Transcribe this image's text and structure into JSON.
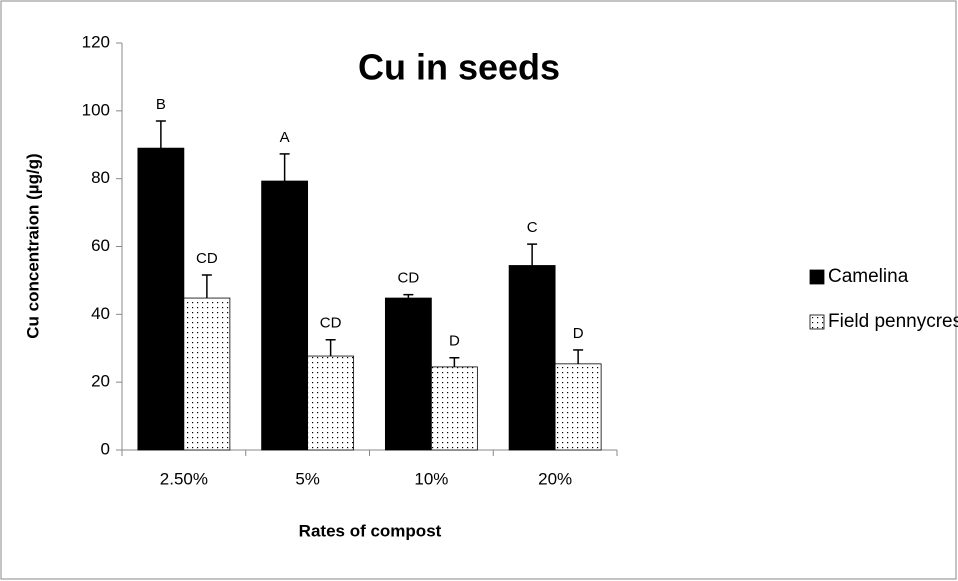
{
  "chart_data": {
    "type": "bar",
    "title": "Cu in seeds",
    "x_label": "Rates of compost",
    "y_label": "Cu concentraion (µg/g)",
    "categories": [
      "2.50%",
      "5%",
      "10%",
      "20%"
    ],
    "series": [
      {
        "name": "Camelina",
        "color": "#000000",
        "pattern": "solid",
        "values": [
          89,
          79.3,
          44.8,
          54.4
        ],
        "errors": [
          8,
          8,
          1,
          6.3
        ],
        "labels": [
          "B",
          "A",
          "CD",
          "C"
        ]
      },
      {
        "name": "Field pennycress",
        "color": "#ffffff",
        "pattern": "dots",
        "values": [
          44.8,
          27.7,
          24.5,
          25.4
        ],
        "errors": [
          6.8,
          4.8,
          2.7,
          4.1
        ],
        "labels": [
          "CD",
          "CD",
          "D",
          "D"
        ]
      }
    ],
    "ylim": [
      0,
      120
    ],
    "yticks": [
      0,
      20,
      40,
      60,
      80,
      100,
      120
    ],
    "legend": "right"
  }
}
